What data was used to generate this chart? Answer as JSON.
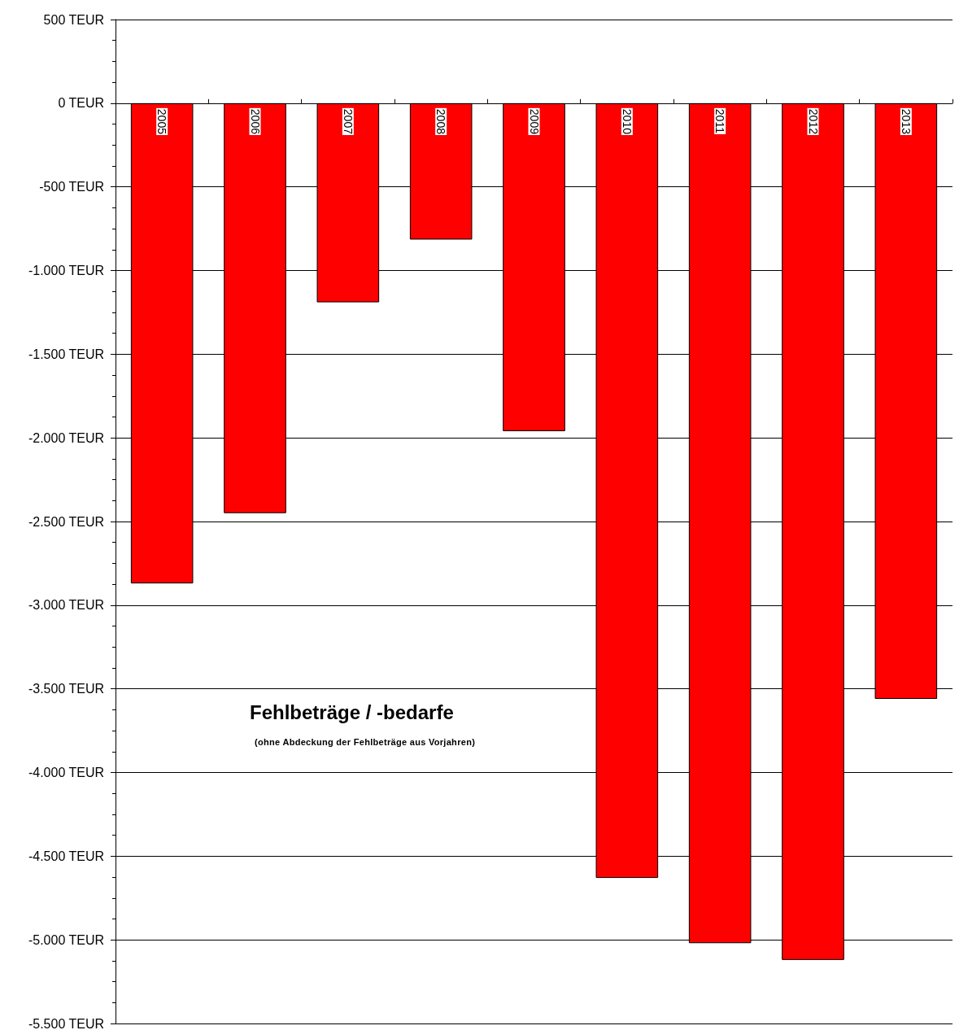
{
  "chart_data": {
    "type": "bar",
    "title": "Fehlbeträge / -bedarfe",
    "subtitle": "(ohne Abdeckung der Fehlbeträge aus Vorjahren)",
    "categories": [
      "2005",
      "2006",
      "2007",
      "2008",
      "2009",
      "2010",
      "2011",
      "2012",
      "2013"
    ],
    "series": [
      {
        "color": "#ff0000",
        "values": [
          -2870,
          -2450,
          -1190,
          -815,
          -1960,
          -4630,
          -5020,
          -5120,
          -3560
        ]
      }
    ],
    "ylim": [
      -5500,
      500
    ],
    "yticks": [
      {
        "value": -5500,
        "label": "-5.500 TEUR"
      },
      {
        "value": -5000,
        "label": "-5.000 TEUR"
      },
      {
        "value": -4500,
        "label": "-4.500 TEUR"
      },
      {
        "value": -4000,
        "label": "-4.000 TEUR"
      },
      {
        "value": -3500,
        "label": "-3.500 TEUR"
      },
      {
        "value": -3000,
        "label": "-3.000 TEUR"
      },
      {
        "value": -2500,
        "label": "-2.500 TEUR"
      },
      {
        "value": -2000,
        "label": "-2.000 TEUR"
      },
      {
        "value": -1500,
        "label": "-1.500 TEUR"
      },
      {
        "value": -1000,
        "label": "-1.000 TEUR"
      },
      {
        "value": -500,
        "label": "-500 TEUR"
      },
      {
        "value": 0,
        "label": "0 TEUR"
      },
      {
        "value": 500,
        "label": "500 TEUR"
      }
    ],
    "grid": "y"
  }
}
